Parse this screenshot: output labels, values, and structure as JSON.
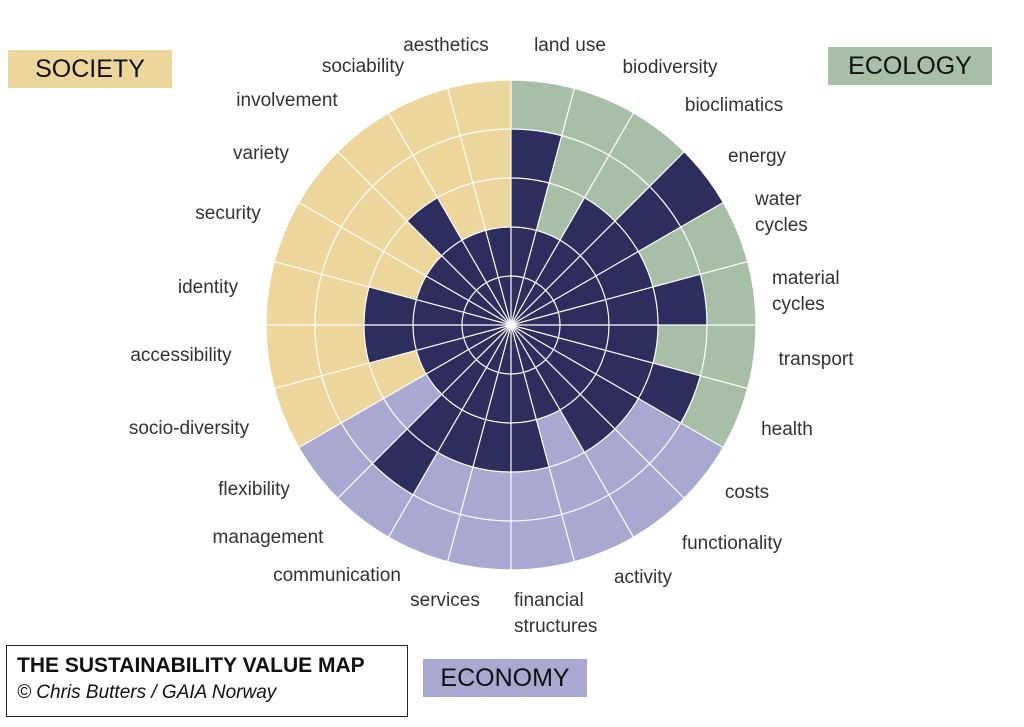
{
  "title": "THE SUSTAINABILITY VALUE MAP",
  "credit": "© Chris Butters / GAIA Norway",
  "chart_data": {
    "type": "polar",
    "rlim": [
      0,
      5
    ],
    "fill_color": "#2e2e5e",
    "series": [
      {
        "name": "ECOLOGY",
        "color": "#a8bfa7",
        "categories": [
          "land use",
          "biodiversity",
          "bioclimatics",
          "energy",
          "water cycles",
          "material cycles",
          "transport",
          "health"
        ],
        "values": [
          4,
          2,
          3,
          5,
          3,
          4,
          3,
          4
        ]
      },
      {
        "name": "ECONOMY",
        "color": "#a8a8d0",
        "categories": [
          "costs",
          "functionality",
          "activity",
          "financial structures",
          "services",
          "communication",
          "management",
          "flexibility"
        ],
        "values": [
          3,
          3,
          2,
          3,
          3,
          3,
          4,
          2
        ]
      },
      {
        "name": "SOCIETY",
        "color": "#ecd69c",
        "categories": [
          "socio-diversity",
          "accessibility",
          "identity",
          "security",
          "variety",
          "involvement",
          "sociability",
          "aesthetics"
        ],
        "values": [
          2,
          3,
          3,
          2,
          2,
          3,
          2,
          2
        ]
      }
    ]
  }
}
